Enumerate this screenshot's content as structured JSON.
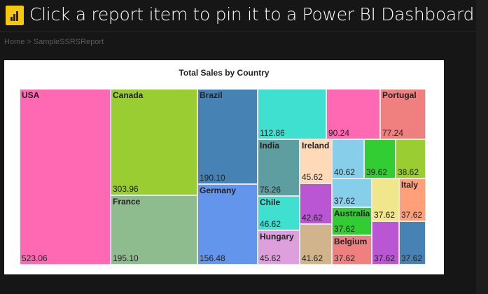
{
  "breadcrumb": "Home > SampleSSRSReport",
  "banner": {
    "text": "Click a report item to pin it to a Power BI Dashboard",
    "icon": "power-bi-icon",
    "icon_color": "#F2C811"
  },
  "chart_data": {
    "type": "treemap",
    "title": "Total Sales by Country",
    "tiles": [
      {
        "name": "USA",
        "value": "523.06",
        "color": "#FF69B4"
      },
      {
        "name": "Canada",
        "value": "303.96",
        "color": "#9ACD32"
      },
      {
        "name": "France",
        "value": "195.10",
        "color": "#8FBC8F"
      },
      {
        "name": "Brazil",
        "value": "190.10",
        "color": "#4682B4"
      },
      {
        "name": "Germany",
        "value": "156.48",
        "color": "#6495ED"
      },
      {
        "name": "",
        "value": "112.86",
        "color": "#40E0D0"
      },
      {
        "name": "",
        "value": "90.24",
        "color": "#FF69B4"
      },
      {
        "name": "Portugal",
        "value": "77.24",
        "color": "#F08080"
      },
      {
        "name": "India",
        "value": "75.26",
        "color": "#5F9EA0"
      },
      {
        "name": "Chile",
        "value": "46.62",
        "color": "#40E0D0"
      },
      {
        "name": "Hungary",
        "value": "45.62",
        "color": "#DDA0DD"
      },
      {
        "name": "Ireland",
        "value": "45.62",
        "color": "#FFDAB9"
      },
      {
        "name": "",
        "value": "42.62",
        "color": "#BA55D3"
      },
      {
        "name": "",
        "value": "41.62",
        "color": "#D2B48C"
      },
      {
        "name": "",
        "value": "40.62",
        "color": "#87CEEB"
      },
      {
        "name": "",
        "value": "39.62",
        "color": "#32CD32"
      },
      {
        "name": "",
        "value": "38.62",
        "color": "#9ACD32"
      },
      {
        "name": "",
        "value": "37.62",
        "color": "#87CEEB"
      },
      {
        "name": "Australia",
        "value": "37.62",
        "color": "#32CD32"
      },
      {
        "name": "Belgium",
        "value": "37.62",
        "color": "#F08080"
      },
      {
        "name": "",
        "value": "37.62",
        "color": "#F0E68C"
      },
      {
        "name": "Italy",
        "value": "37.62",
        "color": "#FFA07A"
      },
      {
        "name": "",
        "value": "37.62",
        "color": "#BA55D3"
      },
      {
        "name": "",
        "value": "37.62",
        "color": "#4682B4"
      }
    ]
  }
}
